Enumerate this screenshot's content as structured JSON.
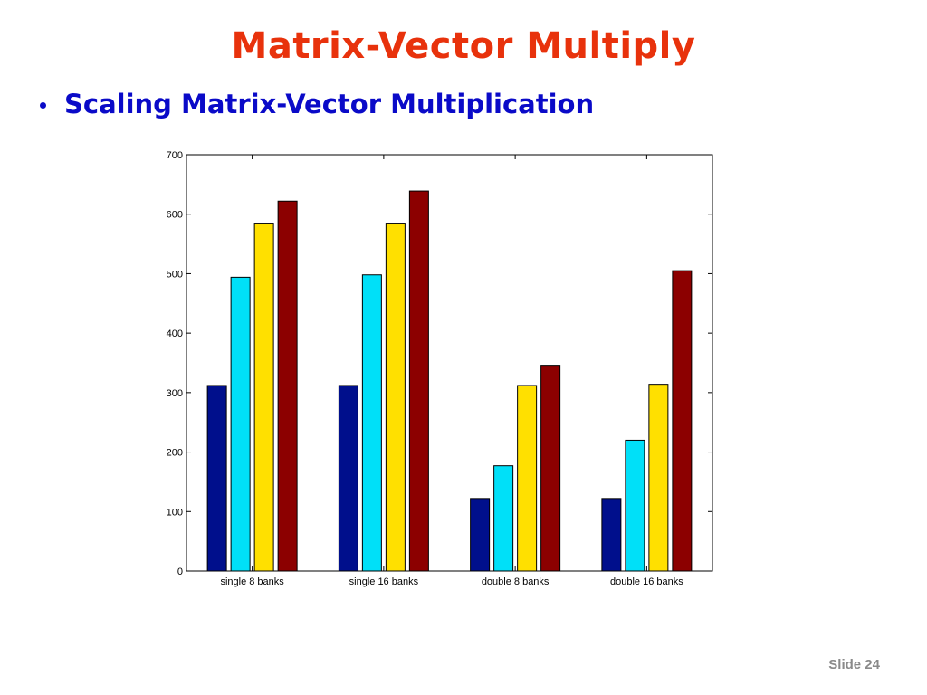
{
  "slide": {
    "title": "Matrix-Vector Multiply",
    "bullet": "Scaling Matrix-Vector Multiplication",
    "slide_number": "Slide 24"
  },
  "chart_data": {
    "type": "bar",
    "categories": [
      "single 8 banks",
      "single 16 banks",
      "double 8 banks",
      "double 16 banks"
    ],
    "series": [
      {
        "color": "#000f8c",
        "values": [
          312,
          312,
          122,
          122
        ]
      },
      {
        "color": "#00e0f8",
        "values": [
          494,
          498,
          177,
          220
        ]
      },
      {
        "color": "#ffe000",
        "values": [
          585,
          585,
          312,
          314
        ]
      },
      {
        "color": "#8c0000",
        "values": [
          622,
          639,
          346,
          505
        ]
      }
    ],
    "ylim": [
      0,
      700
    ],
    "yticks": [
      0,
      100,
      200,
      300,
      400,
      500,
      600,
      700
    ],
    "title": "",
    "xlabel": "",
    "ylabel": "",
    "grid": false
  }
}
